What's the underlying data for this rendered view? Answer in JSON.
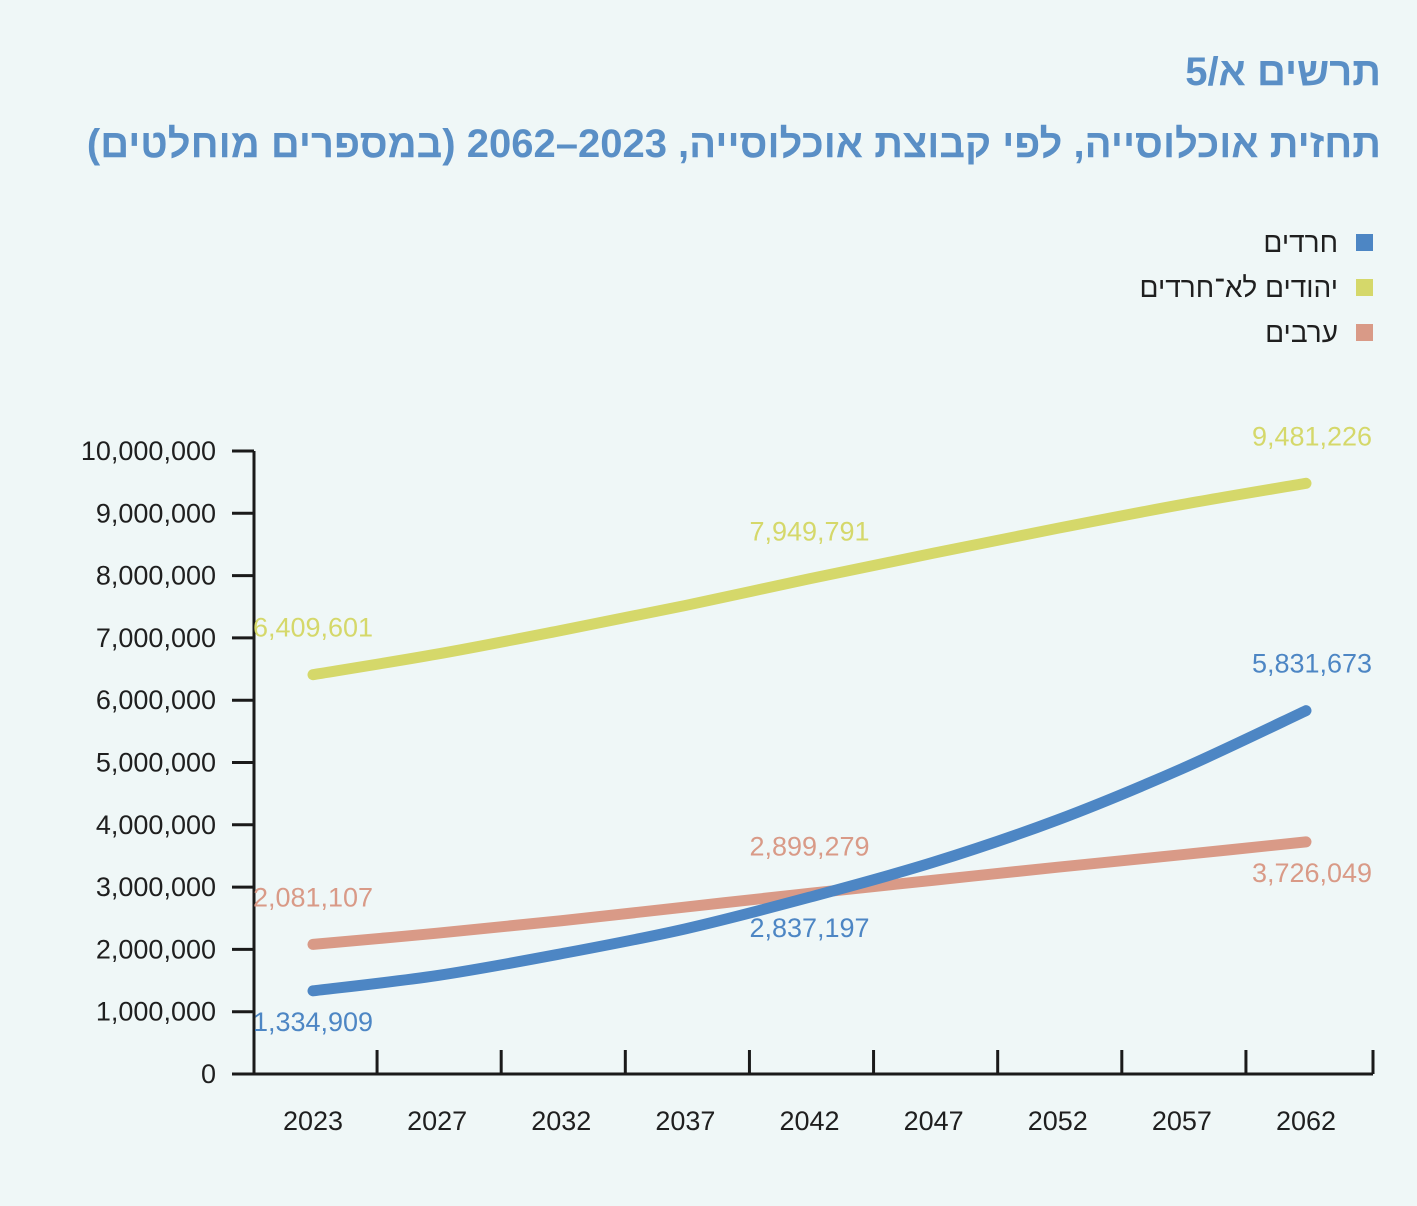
{
  "figure_label": "תרשים א/5",
  "chart_data": {
    "type": "line",
    "title": "תחזית אוכלוסייה, לפי קבוצת אוכלוסייה, 2023–2062 (במספרים מוחלטים)",
    "xlabel": "",
    "ylabel": "",
    "categories": [
      "2023",
      "2027",
      "2032",
      "2037",
      "2042",
      "2047",
      "2052",
      "2057",
      "2062"
    ],
    "ylim": [
      0,
      10000000
    ],
    "y_ticks": [
      "0",
      "1,000,000",
      "2,000,000",
      "3,000,000",
      "4,000,000",
      "5,000,000",
      "6,000,000",
      "7,000,000",
      "8,000,000",
      "9,000,000",
      "10,000,000"
    ],
    "y_tick_values": [
      0,
      1000000,
      2000000,
      3000000,
      4000000,
      5000000,
      6000000,
      7000000,
      8000000,
      9000000,
      10000000
    ],
    "grid": false,
    "legend_position": "top-right",
    "series": [
      {
        "name": "חרדים",
        "color": "#4d86c4",
        "values": [
          1334909,
          1580000,
          1930000,
          2330000,
          2837197,
          3400000,
          4080000,
          4900000,
          5831673
        ],
        "labels": [
          {
            "index": 0,
            "text": "1,334,909",
            "place": "below"
          },
          {
            "index": 4,
            "text": "2,837,197",
            "place": "below"
          },
          {
            "index": 8,
            "text": "5,831,673",
            "place": "above"
          }
        ]
      },
      {
        "name": "יהודים לא־חרדים",
        "color": "#d5d86a",
        "values": [
          6409601,
          6740000,
          7120000,
          7520000,
          7949791,
          8360000,
          8760000,
          9140000,
          9481226
        ],
        "labels": [
          {
            "index": 0,
            "text": "6,409,601",
            "place": "above"
          },
          {
            "index": 4,
            "text": "7,949,791",
            "place": "above"
          },
          {
            "index": 8,
            "text": "9,481,226",
            "place": "above"
          }
        ]
      },
      {
        "name": "ערבים",
        "color": "#d99a87",
        "values": [
          2081107,
          2260000,
          2460000,
          2680000,
          2899279,
          3110000,
          3320000,
          3520000,
          3726049
        ],
        "labels": [
          {
            "index": 0,
            "text": "2,081,107",
            "place": "above"
          },
          {
            "index": 4,
            "text": "2,899,279",
            "place": "above"
          },
          {
            "index": 8,
            "text": "3,726,049",
            "place": "below"
          }
        ]
      }
    ]
  }
}
